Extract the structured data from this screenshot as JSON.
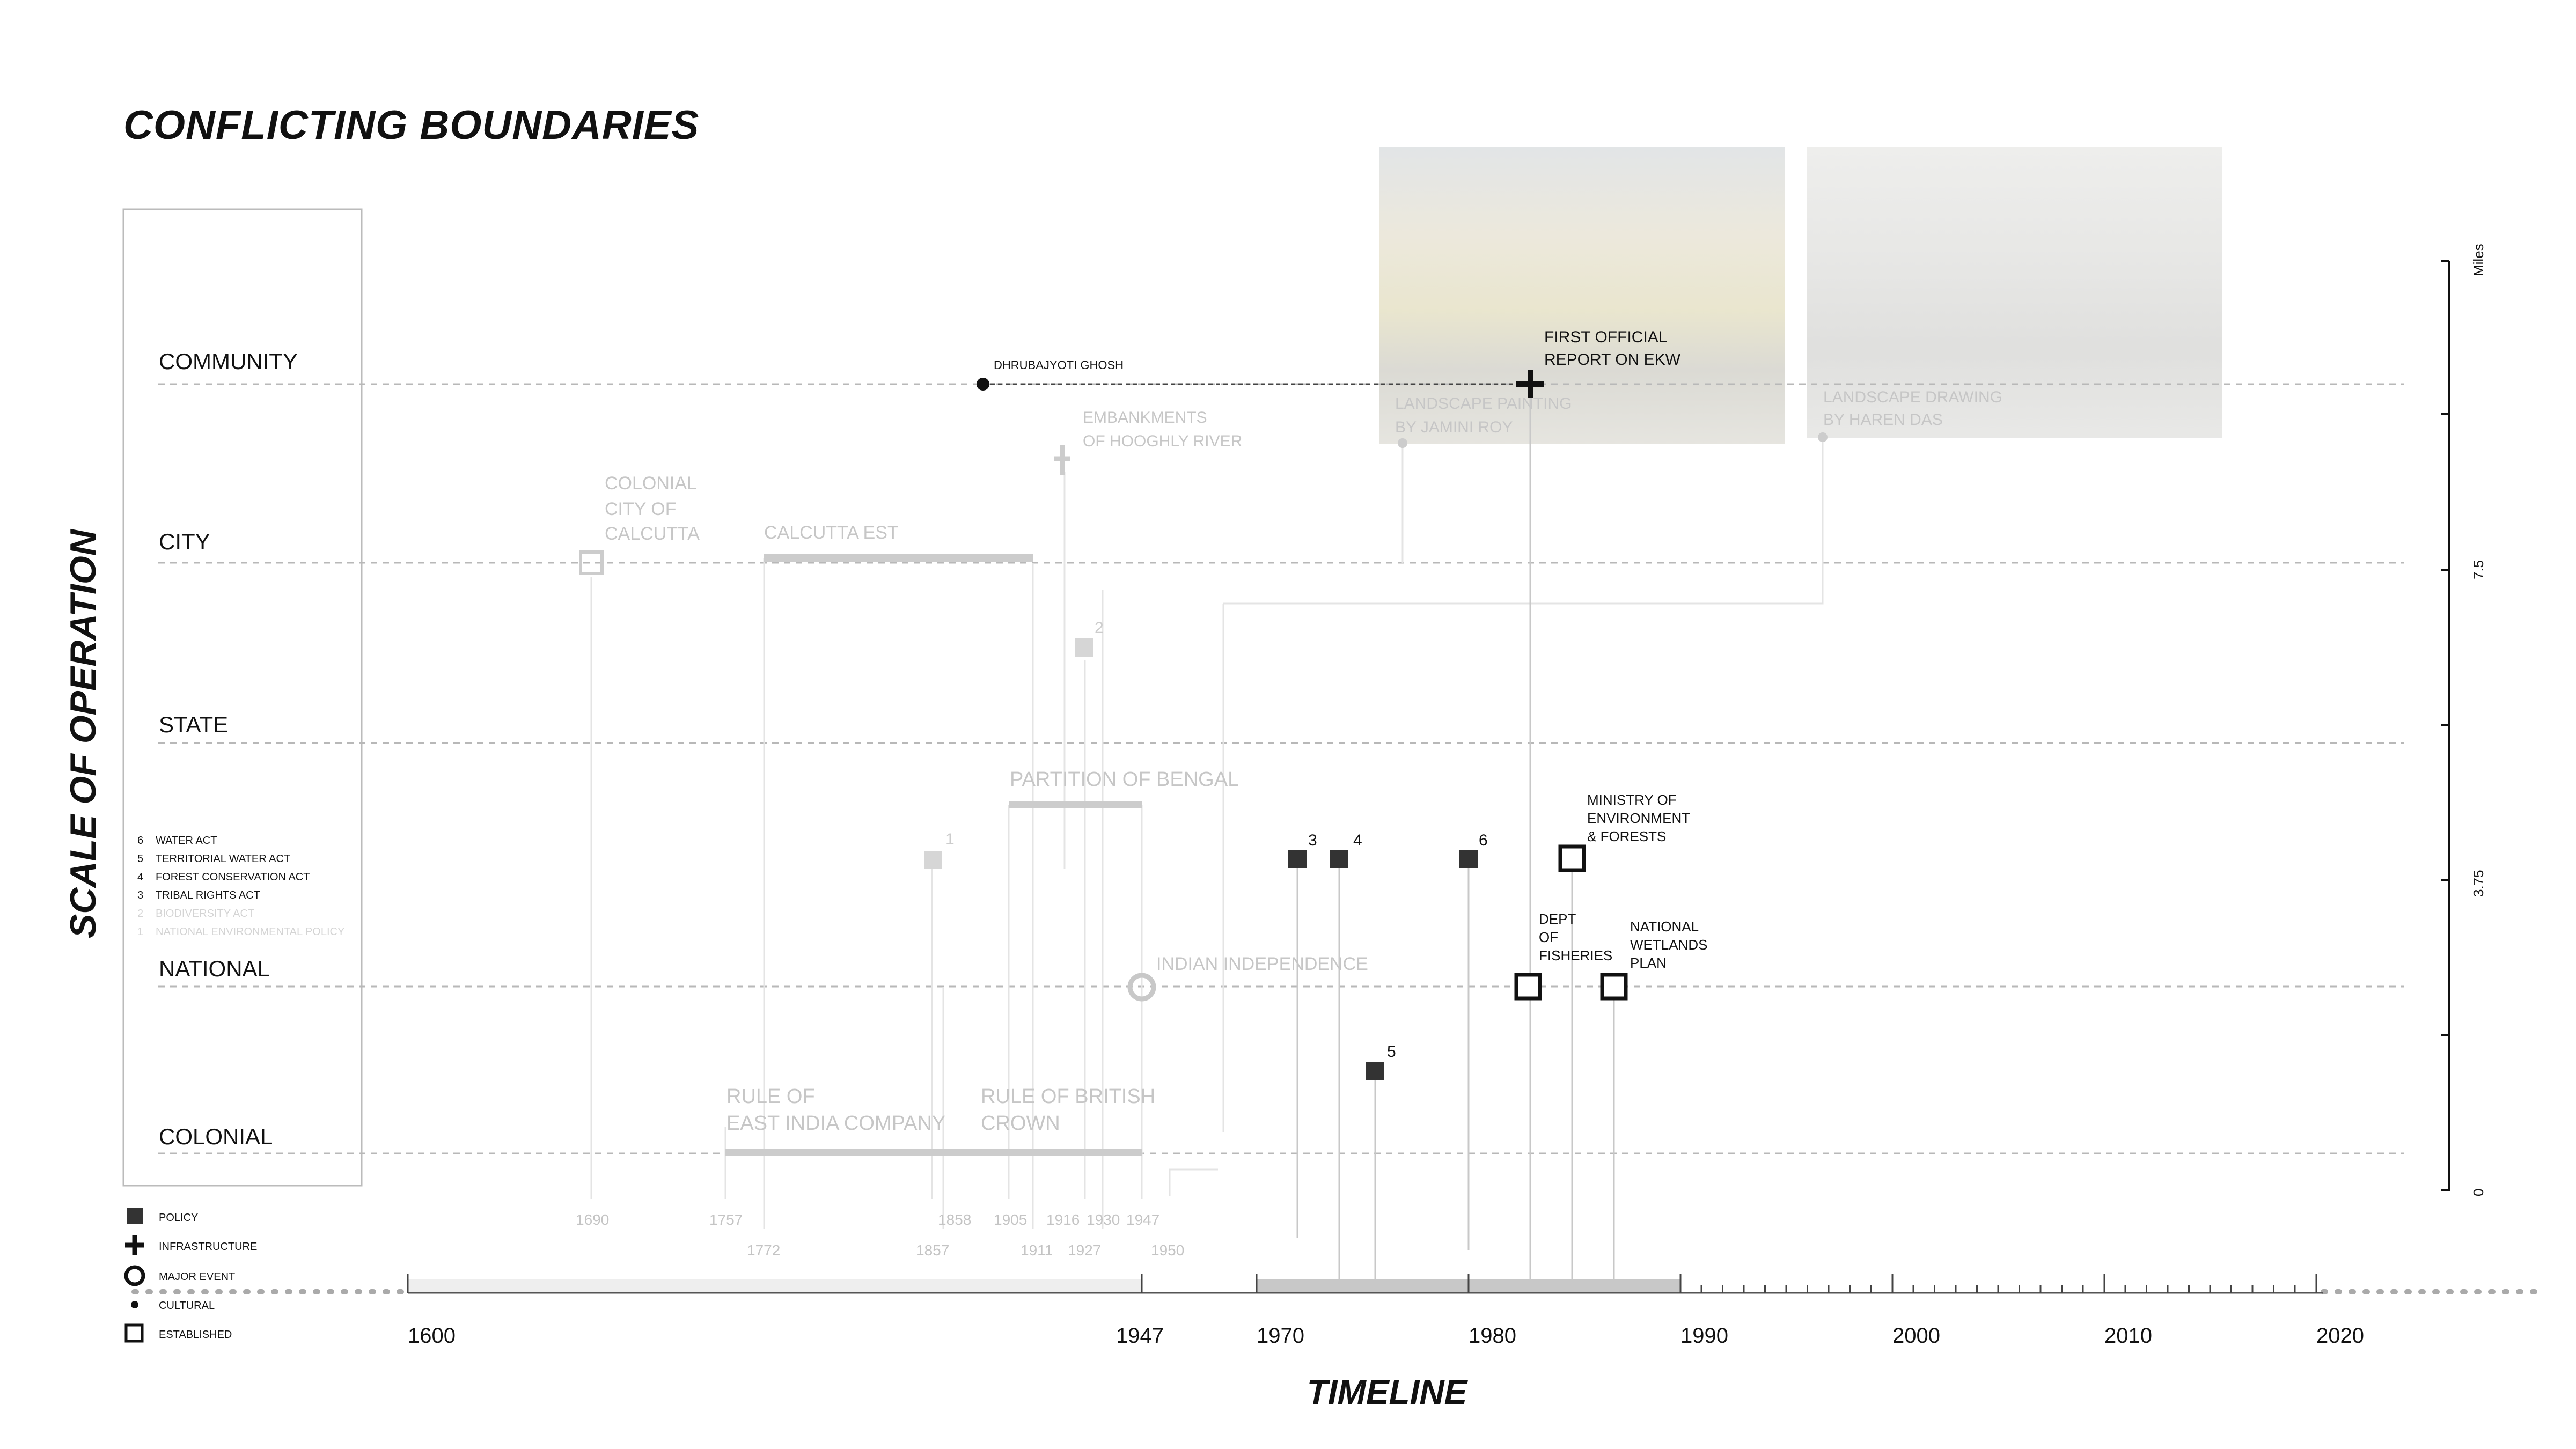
{
  "title": "CONFLICTING BOUNDARIES",
  "y_axis_title": "SCALE OF OPERATION",
  "x_axis_title": "TIMELINE",
  "colors": {
    "text": "#111111",
    "muted": "#c4c4c4",
    "mark": "#333333",
    "band": "#c8c8c8"
  },
  "scales": [
    "COMMUNITY",
    "CITY",
    "STATE",
    "NATIONAL",
    "COLONIAL"
  ],
  "act_list": [
    {
      "num": "6",
      "name": "WATER  ACT",
      "faded": false
    },
    {
      "num": "5",
      "name": "TERRITORIAL WATER ACT",
      "faded": false
    },
    {
      "num": "4",
      "name": "FOREST CONSERVATION ACT",
      "faded": false
    },
    {
      "num": "3",
      "name": "TRIBAL RIGHTS  ACT",
      "faded": false
    },
    {
      "num": "2",
      "name": "BIODIVERSITY  ACT",
      "faded": true
    },
    {
      "num": "1",
      "name": "NATIONAL ENVIRONMENTAL POLICY",
      "faded": true
    }
  ],
  "legend": [
    {
      "icon": "policy-square-icon",
      "label": "POLICY"
    },
    {
      "icon": "infrastructure-cross-icon",
      "label": "INFRASTRUCTURE"
    },
    {
      "icon": "major-event-ring-icon",
      "label": "MAJOR EVENT"
    },
    {
      "icon": "cultural-dot-icon",
      "label": "CULTURAL"
    },
    {
      "icon": "established-square-icon",
      "label": "ESTABLISHED"
    }
  ],
  "timeline_labels": [
    "1600",
    "1947",
    "1970",
    "1980",
    "1990",
    "2000",
    "2010",
    "2020"
  ],
  "date_labels": [
    "1690",
    "1757",
    "1772",
    "1858",
    "1857",
    "1905",
    "1911",
    "1916",
    "1927",
    "1930",
    "1947",
    "1950"
  ],
  "miles_axis": {
    "label": "Miles",
    "ticks": [
      "7.5",
      "3.75",
      "0"
    ]
  },
  "events": [
    {
      "id": "dhrubajyoti",
      "text": "DHRUBAJYOTI GHOSH"
    },
    {
      "id": "first-report",
      "text": "FIRST OFFICIAL\nREPORT ON EKW"
    },
    {
      "id": "embankments",
      "text": "EMBANKMENTS\nOF HOOGHLY RIVER"
    },
    {
      "id": "jamini",
      "text": "LANDSCAPE PAINTING\nBY JAMINI ROY"
    },
    {
      "id": "haren",
      "text": "LANDSCAPE DRAWING\nBY HAREN DAS"
    },
    {
      "id": "colonial-city",
      "text": "COLONIAL\nCITY OF\nCALCUTTA"
    },
    {
      "id": "calcutta-est",
      "text": "CALCUTTA EST"
    },
    {
      "id": "partition",
      "text": "PARTITION OF BENGAL"
    },
    {
      "id": "independence",
      "text": "INDIAN INDEPENDENCE"
    },
    {
      "id": "ministry",
      "text": "MINISTRY OF\nENVIRONMENT\n& FORESTS"
    },
    {
      "id": "dept-fisheries",
      "text": "DEPT\nOF\nFISHERIES"
    },
    {
      "id": "wetlands-plan",
      "text": "NATIONAL\nWETLANDS\nPLAN"
    },
    {
      "id": "east-india",
      "text": "RULE OF\nEAST INDIA COMPANY"
    },
    {
      "id": "british-crown",
      "text": "RULE OF BRITISH\nCROWN"
    }
  ],
  "policy_markers": [
    "1",
    "2",
    "3",
    "4",
    "5",
    "6"
  ]
}
